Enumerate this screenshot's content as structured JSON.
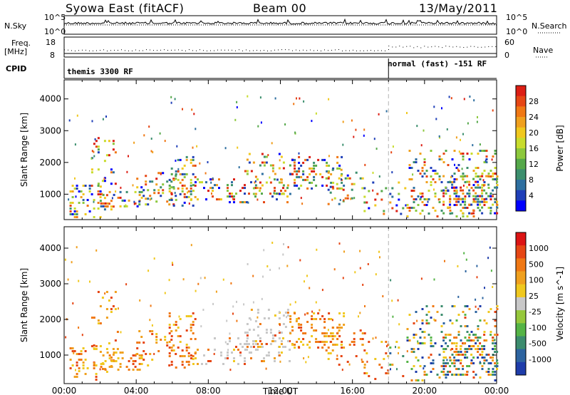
{
  "header": {
    "station": "Syowa East (fitACF)",
    "beam": "Beam 00",
    "date": "13/May/2011"
  },
  "panels": {
    "nsky": {
      "left_label": "N.Sky",
      "right_label": "N.Search",
      "left_ticks": [
        "10^5",
        "10^0"
      ],
      "right_ticks": [
        "10^5",
        "10^0"
      ]
    },
    "freq": {
      "left_label_1": "Freq.",
      "left_label_2": "[MHz]",
      "right_label": "Nave",
      "left_ticks": [
        "18",
        "8"
      ],
      "right_ticks": [
        "60",
        "0"
      ]
    },
    "cpid": {
      "label": "CPID",
      "segments": [
        "themis 3300 RF",
        "normal (fast) -151 RF"
      ]
    }
  },
  "chart_data": [
    {
      "type": "heatmap",
      "title": "",
      "ylabel": "Slant Range [km]",
      "xlabel": "",
      "x_tick_labels": [
        "00:00",
        "04:00",
        "08:00",
        "12:00",
        "16:00",
        "20:00",
        "00:00"
      ],
      "y_tick_labels": [
        "1000",
        "2000",
        "3000",
        "4000"
      ],
      "ylim": [
        200,
        4600
      ],
      "colorbar": {
        "label": "Power [dB]",
        "tick_labels": [
          "4",
          "8",
          "12",
          "16",
          "20",
          "24",
          "28"
        ],
        "range": [
          0,
          30
        ],
        "colors": [
          "#0000ff",
          "#1f3fb8",
          "#2e6fa0",
          "#3c8f6e",
          "#55a84a",
          "#8cc83c",
          "#c8dc2d",
          "#f0c81e",
          "#f0a01e",
          "#f07814",
          "#e64614",
          "#dc1e14"
        ]
      }
    },
    {
      "type": "heatmap",
      "title": "",
      "ylabel": "Slant Range [km]",
      "xlabel": "Time UT",
      "x_tick_labels": [
        "00:00",
        "04:00",
        "08:00",
        "12:00",
        "16:00",
        "20:00",
        "00:00"
      ],
      "y_tick_labels": [
        "1000",
        "2000",
        "3000",
        "4000"
      ],
      "ylim": [
        200,
        4600
      ],
      "colorbar": {
        "label": "Velocity [m s^-1]",
        "tick_labels": [
          "1000",
          "500",
          "100",
          "25",
          "-25",
          "-100",
          "-500",
          "-1000"
        ],
        "colors": [
          "#1e3caa",
          "#2d64a0",
          "#3c8c6e",
          "#55b446",
          "#96c83c",
          "#c8c8c8",
          "#f0c81e",
          "#f0a01e",
          "#f07814",
          "#e64614",
          "#dc1414"
        ]
      }
    }
  ],
  "palette": {
    "frame": "#000000",
    "dashed_marker": "#b4b4b4",
    "power_main": "#f0a01e",
    "power_low": "#3c8f6e",
    "velocity_grey": "#c8c8c8"
  }
}
